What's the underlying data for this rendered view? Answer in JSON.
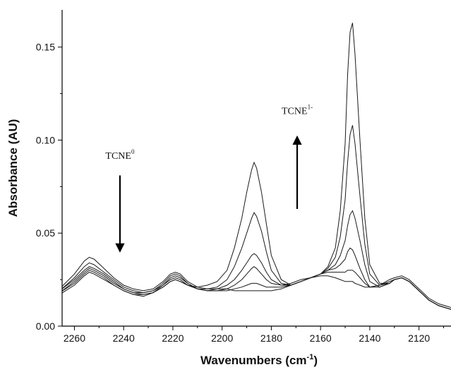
{
  "chart_data": {
    "type": "line",
    "title": "",
    "xlabel": "Wavenumbers",
    "xlabel_unit_base": "cm",
    "xlabel_unit_exp": "-1",
    "ylabel": "Absorbance (AU)",
    "xlim": [
      2265,
      2107
    ],
    "ylim": [
      0.0,
      0.17
    ],
    "x_reversed": true,
    "x_ticks": [
      2260,
      2240,
      2220,
      2200,
      2180,
      2160,
      2140,
      2120
    ],
    "x_tick_labels": [
      "2260",
      "2240",
      "2220",
      "2200",
      "2180",
      "2160",
      "2140",
      "2120"
    ],
    "y_ticks": [
      0.0,
      0.05,
      0.1,
      0.15
    ],
    "y_tick_labels": [
      "0.00",
      "0.05",
      "0.10",
      "0.15"
    ],
    "grid": false,
    "legend": "none",
    "annotations": [
      {
        "base": "TCNE",
        "sup": "0",
        "x": 2241.5,
        "y": 0.09,
        "arrow": "down",
        "arrow_from": 0.081,
        "arrow_to": 0.042
      },
      {
        "base": "TCNE",
        "sup": "1-",
        "x": 2169.5,
        "y": 0.114,
        "arrow": "up",
        "arrow_from": 0.063,
        "arrow_to": 0.1
      }
    ],
    "series": [
      {
        "x": [
          2266,
          2260,
          2256,
          2254,
          2252,
          2248,
          2244,
          2240,
          2236,
          2232,
          2228,
          2224,
          2221,
          2219,
          2217,
          2214,
          2210,
          2206,
          2202,
          2198,
          2195,
          2192,
          2190,
          2188,
          2187,
          2186,
          2184,
          2182,
          2180,
          2176,
          2172,
          2168,
          2164,
          2160,
          2157,
          2154,
          2152,
          2150,
          2149,
          2148,
          2147,
          2146,
          2144,
          2142,
          2140,
          2136,
          2132,
          2130,
          2127,
          2124,
          2120,
          2116,
          2112,
          2107
        ],
        "y": [
          0.02,
          0.028,
          0.035,
          0.037,
          0.036,
          0.031,
          0.026,
          0.022,
          0.02,
          0.019,
          0.02,
          0.024,
          0.028,
          0.029,
          0.028,
          0.024,
          0.021,
          0.02,
          0.02,
          0.02,
          0.019,
          0.019,
          0.019,
          0.019,
          0.019,
          0.019,
          0.019,
          0.019,
          0.019,
          0.02,
          0.022,
          0.024,
          0.026,
          0.027,
          0.027,
          0.026,
          0.025,
          0.024,
          0.024,
          0.024,
          0.024,
          0.023,
          0.022,
          0.021,
          0.021,
          0.022,
          0.025,
          0.026,
          0.027,
          0.025,
          0.02,
          0.015,
          0.012,
          0.01
        ]
      },
      {
        "x": [
          2266,
          2260,
          2256,
          2254,
          2252,
          2248,
          2244,
          2240,
          2236,
          2232,
          2228,
          2224,
          2221,
          2219,
          2217,
          2214,
          2210,
          2206,
          2202,
          2198,
          2195,
          2192,
          2190,
          2188,
          2187,
          2186,
          2184,
          2182,
          2180,
          2176,
          2172,
          2168,
          2164,
          2160,
          2157,
          2154,
          2152,
          2150,
          2149,
          2148,
          2147,
          2146,
          2144,
          2142,
          2140,
          2136,
          2132,
          2130,
          2127,
          2124,
          2120,
          2116,
          2112,
          2107
        ],
        "y": [
          0.019,
          0.026,
          0.032,
          0.034,
          0.033,
          0.029,
          0.025,
          0.021,
          0.019,
          0.018,
          0.019,
          0.023,
          0.027,
          0.028,
          0.027,
          0.023,
          0.02,
          0.019,
          0.019,
          0.019,
          0.02,
          0.021,
          0.022,
          0.023,
          0.023,
          0.023,
          0.022,
          0.021,
          0.021,
          0.021,
          0.022,
          0.024,
          0.026,
          0.028,
          0.029,
          0.029,
          0.029,
          0.029,
          0.03,
          0.03,
          0.03,
          0.029,
          0.026,
          0.023,
          0.021,
          0.022,
          0.024,
          0.025,
          0.026,
          0.024,
          0.019,
          0.014,
          0.011,
          0.009
        ]
      },
      {
        "x": [
          2266,
          2260,
          2256,
          2254,
          2252,
          2248,
          2244,
          2240,
          2236,
          2232,
          2228,
          2224,
          2221,
          2219,
          2217,
          2214,
          2210,
          2206,
          2202,
          2198,
          2195,
          2192,
          2190,
          2188,
          2187,
          2186,
          2184,
          2182,
          2180,
          2176,
          2172,
          2168,
          2164,
          2160,
          2157,
          2154,
          2152,
          2150,
          2149,
          2148,
          2147,
          2146,
          2144,
          2142,
          2140,
          2136,
          2132,
          2130,
          2127,
          2124,
          2120,
          2116,
          2112,
          2107
        ],
        "y": [
          0.019,
          0.025,
          0.03,
          0.032,
          0.031,
          0.028,
          0.024,
          0.02,
          0.018,
          0.018,
          0.019,
          0.022,
          0.026,
          0.027,
          0.026,
          0.023,
          0.02,
          0.019,
          0.019,
          0.02,
          0.022,
          0.025,
          0.028,
          0.031,
          0.032,
          0.031,
          0.028,
          0.025,
          0.023,
          0.022,
          0.023,
          0.025,
          0.026,
          0.028,
          0.03,
          0.031,
          0.033,
          0.036,
          0.04,
          0.042,
          0.041,
          0.038,
          0.031,
          0.025,
          0.021,
          0.021,
          0.023,
          0.025,
          0.026,
          0.024,
          0.019,
          0.014,
          0.011,
          0.009
        ]
      },
      {
        "x": [
          2266,
          2260,
          2256,
          2254,
          2252,
          2248,
          2244,
          2240,
          2236,
          2232,
          2228,
          2224,
          2221,
          2219,
          2217,
          2214,
          2210,
          2206,
          2202,
          2198,
          2195,
          2192,
          2190,
          2188,
          2187,
          2186,
          2184,
          2182,
          2180,
          2176,
          2172,
          2168,
          2164,
          2160,
          2157,
          2154,
          2152,
          2150,
          2149,
          2148,
          2147,
          2146,
          2144,
          2142,
          2140,
          2136,
          2132,
          2130,
          2127,
          2124,
          2120,
          2116,
          2112,
          2107
        ],
        "y": [
          0.018,
          0.024,
          0.029,
          0.031,
          0.03,
          0.027,
          0.023,
          0.02,
          0.018,
          0.017,
          0.018,
          0.022,
          0.025,
          0.026,
          0.025,
          0.022,
          0.02,
          0.019,
          0.02,
          0.022,
          0.025,
          0.03,
          0.034,
          0.038,
          0.039,
          0.038,
          0.034,
          0.029,
          0.025,
          0.022,
          0.022,
          0.024,
          0.026,
          0.028,
          0.03,
          0.033,
          0.038,
          0.046,
          0.054,
          0.06,
          0.062,
          0.058,
          0.046,
          0.033,
          0.024,
          0.021,
          0.023,
          0.025,
          0.026,
          0.024,
          0.019,
          0.014,
          0.011,
          0.009
        ]
      },
      {
        "x": [
          2266,
          2260,
          2256,
          2254,
          2252,
          2248,
          2244,
          2240,
          2236,
          2232,
          2228,
          2224,
          2221,
          2219,
          2217,
          2214,
          2210,
          2206,
          2202,
          2198,
          2195,
          2192,
          2190,
          2188,
          2187,
          2186,
          2184,
          2182,
          2180,
          2176,
          2172,
          2168,
          2164,
          2160,
          2157,
          2154,
          2152,
          2150,
          2149,
          2148,
          2147,
          2146,
          2144,
          2142,
          2140,
          2136,
          2132,
          2130,
          2127,
          2124,
          2120,
          2116,
          2112,
          2107
        ],
        "y": [
          0.018,
          0.023,
          0.028,
          0.03,
          0.029,
          0.026,
          0.022,
          0.019,
          0.017,
          0.017,
          0.018,
          0.021,
          0.024,
          0.025,
          0.024,
          0.022,
          0.02,
          0.02,
          0.021,
          0.025,
          0.032,
          0.042,
          0.05,
          0.058,
          0.061,
          0.059,
          0.051,
          0.04,
          0.03,
          0.023,
          0.022,
          0.024,
          0.026,
          0.028,
          0.031,
          0.037,
          0.048,
          0.068,
          0.088,
          0.103,
          0.108,
          0.098,
          0.07,
          0.044,
          0.028,
          0.022,
          0.023,
          0.025,
          0.026,
          0.024,
          0.019,
          0.014,
          0.011,
          0.009
        ]
      },
      {
        "x": [
          2266,
          2260,
          2256,
          2254,
          2252,
          2248,
          2244,
          2240,
          2236,
          2232,
          2228,
          2224,
          2221,
          2219,
          2217,
          2214,
          2210,
          2206,
          2202,
          2198,
          2195,
          2192,
          2190,
          2188,
          2187,
          2186,
          2184,
          2182,
          2180,
          2176,
          2172,
          2168,
          2164,
          2160,
          2157,
          2154,
          2152,
          2150,
          2149,
          2148,
          2147,
          2146,
          2144,
          2142,
          2140,
          2136,
          2132,
          2130,
          2127,
          2124,
          2120,
          2116,
          2112,
          2107
        ],
        "y": [
          0.017,
          0.022,
          0.027,
          0.029,
          0.028,
          0.025,
          0.022,
          0.019,
          0.017,
          0.016,
          0.018,
          0.021,
          0.024,
          0.025,
          0.024,
          0.022,
          0.021,
          0.022,
          0.024,
          0.03,
          0.042,
          0.058,
          0.072,
          0.084,
          0.088,
          0.085,
          0.072,
          0.055,
          0.038,
          0.025,
          0.022,
          0.024,
          0.026,
          0.028,
          0.032,
          0.042,
          0.062,
          0.098,
          0.135,
          0.158,
          0.163,
          0.146,
          0.1,
          0.058,
          0.033,
          0.023,
          0.023,
          0.025,
          0.026,
          0.024,
          0.019,
          0.014,
          0.011,
          0.009
        ]
      }
    ]
  }
}
